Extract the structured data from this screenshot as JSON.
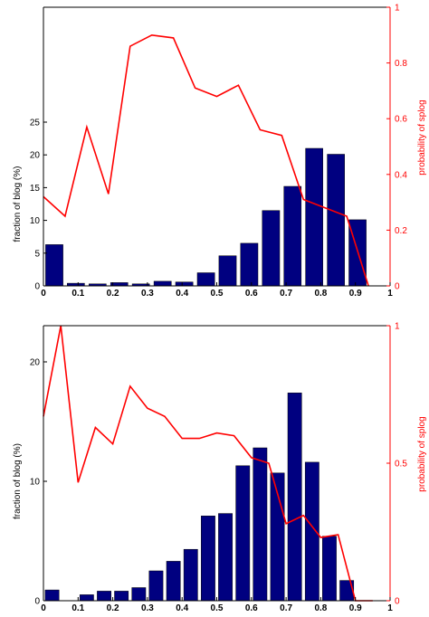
{
  "chart_data": [
    {
      "type": "bar",
      "ylabel": "fraction of blog (%)",
      "y2label": "probability of splog",
      "xlim": [
        0,
        1
      ],
      "ylim": [
        0,
        25
      ],
      "y2lim": [
        0,
        1
      ],
      "xticks": [
        "0",
        "0.1",
        "0.2",
        "0.3",
        "0.4",
        "0.5",
        "0.6",
        "0.7",
        "0.8",
        "0.9",
        "1"
      ],
      "yticks": [
        "0",
        "5",
        "10",
        "15",
        "20",
        "25"
      ],
      "y2ticks": [
        "0",
        "0.2",
        "0.4",
        "0.6",
        "0.8",
        "1"
      ],
      "bins": [
        0.0,
        0.0625,
        0.125,
        0.1875,
        0.25,
        0.3125,
        0.375,
        0.4375,
        0.5,
        0.5625,
        0.625,
        0.6875,
        0.75,
        0.8125,
        0.875,
        0.9375
      ],
      "values": [
        6.3,
        0.4,
        0.3,
        0.5,
        0.3,
        0.7,
        0.6,
        2.0,
        4.6,
        6.5,
        11.5,
        15.2,
        21.0,
        20.1,
        10.1,
        0.0
      ],
      "series": [
        {
          "name": "probability of splog",
          "color": "#ff0000",
          "x": [
            0.0,
            0.0625,
            0.125,
            0.1875,
            0.25,
            0.3125,
            0.375,
            0.4375,
            0.5,
            0.5625,
            0.625,
            0.6875,
            0.75,
            0.8125,
            0.875,
            0.9375
          ],
          "y": [
            0.32,
            0.25,
            0.57,
            0.33,
            0.86,
            0.9,
            0.89,
            0.71,
            0.68,
            0.72,
            0.56,
            0.54,
            0.31,
            0.28,
            0.25,
            0.0
          ]
        }
      ],
      "bar_color": "#000080"
    },
    {
      "type": "bar",
      "ylabel": "fraction of blog (%)",
      "y2label": "probability of splog",
      "xlim": [
        0,
        1
      ],
      "ylim": [
        0,
        20
      ],
      "y2lim": [
        0,
        1
      ],
      "xticks": [
        "0",
        "0.1",
        "0.2",
        "0.3",
        "0.4",
        "0.5",
        "0.6",
        "0.7",
        "0.8",
        "0.9",
        "1"
      ],
      "yticks": [
        "0",
        "10",
        "20"
      ],
      "y2ticks": [
        "0",
        "0.5",
        "1"
      ],
      "bins": [
        0.0,
        0.05,
        0.1,
        0.15,
        0.2,
        0.25,
        0.3,
        0.35,
        0.4,
        0.45,
        0.5,
        0.55,
        0.6,
        0.65,
        0.7,
        0.75,
        0.8,
        0.85,
        0.9,
        0.95
      ],
      "values": [
        0.9,
        0.0,
        0.5,
        0.8,
        0.8,
        1.1,
        2.5,
        3.3,
        4.3,
        7.1,
        7.3,
        11.3,
        12.8,
        10.7,
        17.4,
        11.6,
        5.4,
        1.7,
        0.0,
        0.0
      ],
      "series": [
        {
          "name": "probability of splog",
          "color": "#ff0000",
          "x": [
            0.0,
            0.05,
            0.1,
            0.15,
            0.2,
            0.25,
            0.3,
            0.35,
            0.4,
            0.45,
            0.5,
            0.55,
            0.6,
            0.65,
            0.7,
            0.75,
            0.8,
            0.85,
            0.9,
            0.95
          ],
          "y": [
            0.67,
            1.0,
            0.43,
            0.63,
            0.57,
            0.78,
            0.7,
            0.67,
            0.59,
            0.59,
            0.61,
            0.6,
            0.52,
            0.5,
            0.28,
            0.31,
            0.23,
            0.24,
            0.0,
            0.0
          ]
        }
      ],
      "bar_color": "#000080"
    }
  ]
}
